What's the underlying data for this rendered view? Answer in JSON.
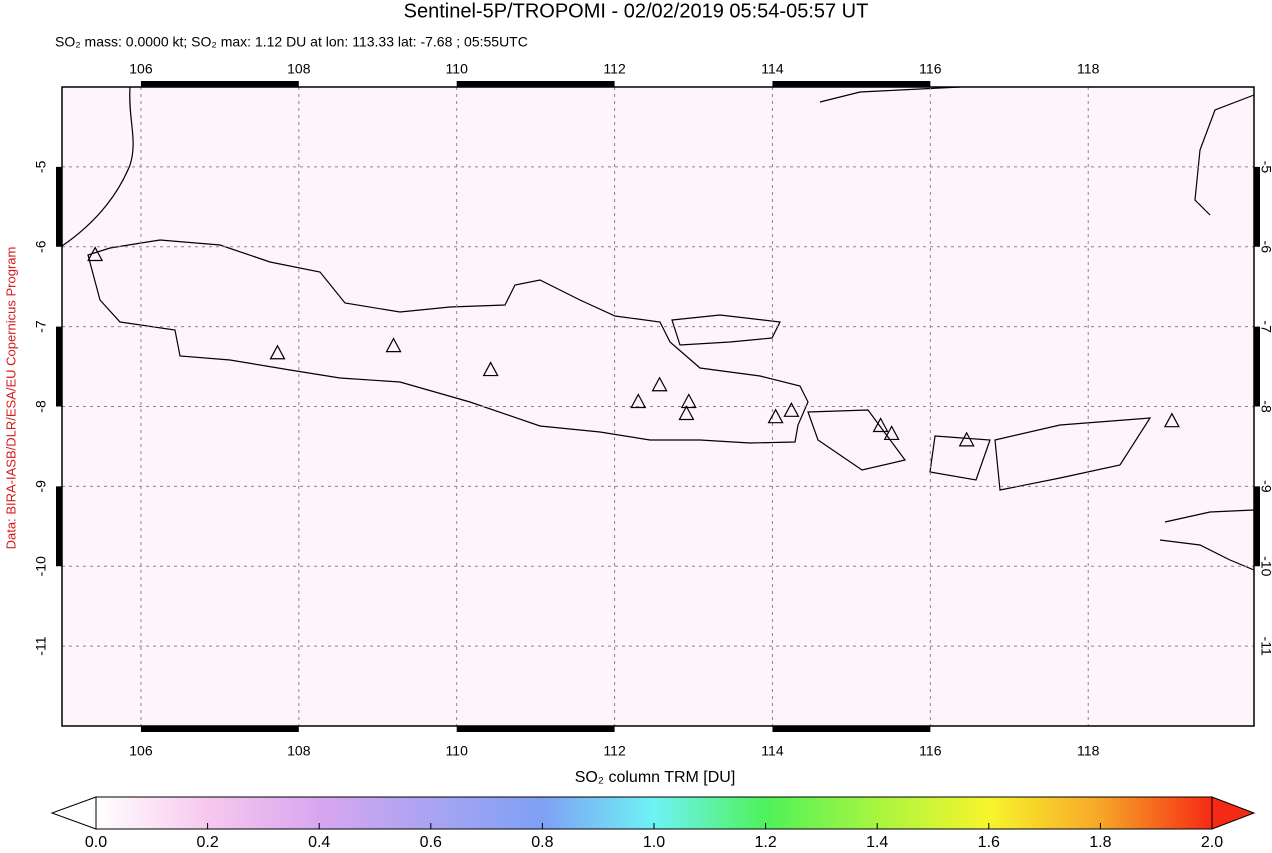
{
  "chart_data": {
    "type": "map",
    "title": "Sentinel-5P/TROPOMI - 02/02/2019 05:54-05:57 UT",
    "subtitle": "SO₂ mass: 0.0000 kt; SO₂ max: 1.12 DU at lon: 113.33 lat: -7.68 ; 05:55UTC",
    "credit": "Data: BIRA-IASB/DLR/ESA/EU Copernicus Program",
    "xlim": [
      105,
      120.1
    ],
    "ylim": [
      -12,
      -4
    ],
    "xticks": [
      106,
      108,
      110,
      112,
      114,
      116,
      118
    ],
    "yticks": [
      -5,
      -6,
      -7,
      -8,
      -9,
      -10,
      -11
    ],
    "grid": true,
    "volcanoes": {
      "lon": [
        105.42,
        107.73,
        109.2,
        110.43,
        112.3,
        112.57,
        112.94,
        112.91,
        114.04,
        114.24,
        115.37,
        115.51,
        116.46,
        119.06
      ],
      "lat": [
        -6.11,
        -7.34,
        -7.25,
        -7.55,
        -7.95,
        -7.74,
        -7.95,
        -8.1,
        -8.14,
        -8.06,
        -8.25,
        -8.35,
        -8.43,
        -8.19
      ]
    },
    "colorbar": {
      "label": "SO₂ column TRM [DU]",
      "lim": [
        0,
        2
      ],
      "ticks": [
        {
          "value": 0,
          "label": "0.0"
        },
        {
          "value": 0.2,
          "label": "0.2"
        },
        {
          "value": 0.4,
          "label": "0.4"
        },
        {
          "value": 0.6,
          "label": "0.6"
        },
        {
          "value": 0.8,
          "label": "0.8"
        },
        {
          "value": 1,
          "label": "1.0"
        },
        {
          "value": 1.2,
          "label": "1.2"
        },
        {
          "value": 1.4,
          "label": "1.4"
        },
        {
          "value": 1.6,
          "label": "1.6"
        },
        {
          "value": 1.8,
          "label": "1.8"
        },
        {
          "value": 2,
          "label": "2.0"
        }
      ],
      "colors": [
        "#ffffff",
        "#f7c8ee",
        "#d8a6f0",
        "#a9a4f2",
        "#7fa0f5",
        "#6ef2f5",
        "#4ef25a",
        "#a8f540",
        "#f7f52c",
        "#f7a628",
        "#f52a14"
      ]
    }
  }
}
